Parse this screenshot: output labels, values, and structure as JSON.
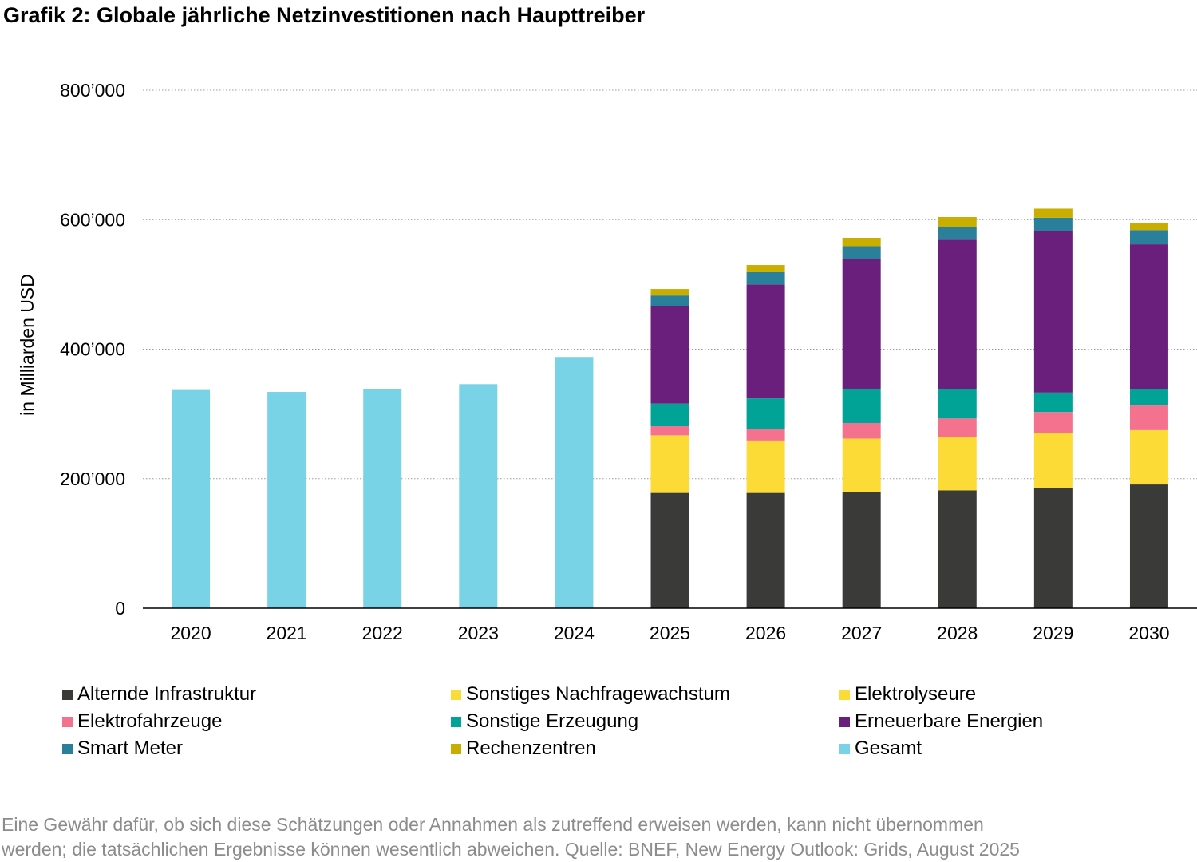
{
  "title": "Grafik 2: Globale jährliche Netzinvestitionen nach Haupttreiber",
  "chart_data": {
    "type": "bar",
    "stacked": true,
    "ylabel": "in Milliarden USD",
    "xlabel": "",
    "ylim": [
      0,
      800000
    ],
    "yticks": [
      0,
      200000,
      400000,
      600000,
      800000
    ],
    "ytick_labels": [
      "0",
      "200’000",
      "400’000",
      "600’000",
      "800’000"
    ],
    "grid": "horizontal dotted",
    "legend_position": "bottom",
    "categories": [
      "2020",
      "2021",
      "2022",
      "2023",
      "2024",
      "2025",
      "2026",
      "2027",
      "2028",
      "2029",
      "2030"
    ],
    "series": [
      {
        "name": "Alternde Infrastruktur",
        "color": "#3a3b39",
        "values": [
          null,
          null,
          null,
          null,
          null,
          178000,
          178000,
          179000,
          182000,
          186000,
          191000
        ]
      },
      {
        "name": "Sonstiges Nachfragewachstum",
        "color": "#fddb37",
        "values": [
          null,
          null,
          null,
          null,
          null,
          89000,
          81000,
          83000,
          82000,
          84000,
          84000
        ]
      },
      {
        "name": "Elektrolyseure",
        "color": "#fddb37",
        "values": [
          null,
          null,
          null,
          null,
          null,
          0,
          0,
          0,
          0,
          0,
          0
        ]
      },
      {
        "name": "Elektrofahrzeuge",
        "color": "#f5728f",
        "values": [
          null,
          null,
          null,
          null,
          null,
          14000,
          18000,
          24000,
          29000,
          33000,
          38000
        ]
      },
      {
        "name": "Sonstige Erzeugung",
        "color": "#00a396",
        "values": [
          null,
          null,
          null,
          null,
          null,
          35000,
          47000,
          53000,
          45000,
          30000,
          25000
        ]
      },
      {
        "name": "Erneuerbare Energien",
        "color": "#6b1f7c",
        "values": [
          null,
          null,
          null,
          null,
          null,
          150000,
          176000,
          200000,
          231000,
          249000,
          224000
        ]
      },
      {
        "name": "Smart Meter",
        "color": "#2a7f9b",
        "values": [
          null,
          null,
          null,
          null,
          null,
          17000,
          19000,
          20000,
          20000,
          21000,
          22000
        ]
      },
      {
        "name": "Rechenzentren",
        "color": "#c9ae00",
        "values": [
          null,
          null,
          null,
          null,
          null,
          10000,
          11000,
          13000,
          15000,
          14000,
          11000
        ]
      },
      {
        "name": "Gesamt",
        "color": "#79d3e6",
        "values": [
          337000,
          334000,
          338000,
          346000,
          388000,
          null,
          null,
          null,
          null,
          null,
          null
        ]
      }
    ]
  },
  "legend": [
    {
      "label": "Alternde Infrastruktur",
      "color": "#3a3b39"
    },
    {
      "label": "Sonstiges Nachfragewachstum",
      "color": "#fddb37"
    },
    {
      "label": "Elektrolyseure",
      "color": "#fddb37"
    },
    {
      "label": "Elektrofahrzeuge",
      "color": "#f5728f"
    },
    {
      "label": "Sonstige Erzeugung",
      "color": "#00a396"
    },
    {
      "label": "Erneuerbare Energien",
      "color": "#6b1f7c"
    },
    {
      "label": "Smart Meter",
      "color": "#2a7f9b"
    },
    {
      "label": "Rechenzentren",
      "color": "#c9ae00"
    },
    {
      "label": "Gesamt",
      "color": "#79d3e6"
    }
  ],
  "footnote": {
    "line1": "Eine Gewähr dafür, ob sich diese Schätzungen oder Annahmen als zutreffend erweisen werden, kann nicht übernommen",
    "line2": "werden; die tatsächlichen Ergebnisse können wesentlich abweichen. Quelle: BNEF, New Energy Outlook: Grids, August 2025"
  }
}
